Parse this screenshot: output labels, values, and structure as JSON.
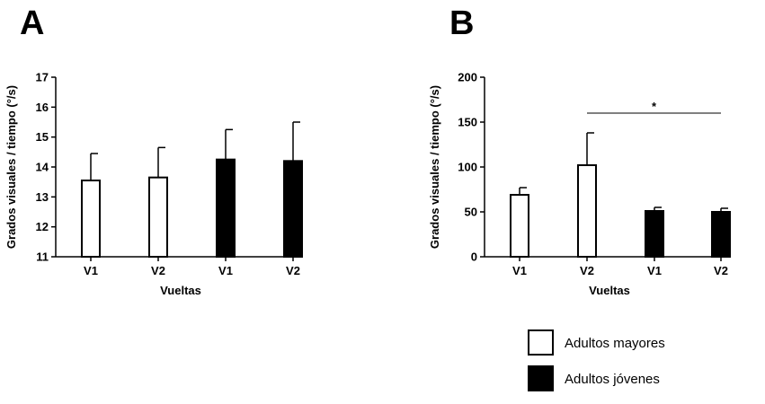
{
  "legend": [
    {
      "label": "Adultos mayores",
      "color": "#ffffff"
    },
    {
      "label": "Adultos jóvenes",
      "color": "#000000"
    }
  ],
  "chart_data": [
    {
      "panel": "A",
      "type": "bar",
      "categories": [
        "V1",
        "V2",
        "V1",
        "V2"
      ],
      "series": [
        {
          "name": "Adultos mayores",
          "values": [
            13.55,
            13.65,
            null,
            null
          ],
          "errors": [
            0.9,
            1.0,
            null,
            null
          ],
          "color": "#ffffff"
        },
        {
          "name": "Adultos jóvenes",
          "values": [
            null,
            null,
            14.25,
            14.2
          ],
          "errors": [
            null,
            null,
            1.0,
            1.3
          ],
          "color": "#000000"
        }
      ],
      "xlabel": "Vueltas",
      "ylabel": "Grados visuales / tiempo (°/s)",
      "ylim": [
        11,
        17
      ],
      "yticks": [
        11,
        12,
        13,
        14,
        15,
        16,
        17
      ],
      "annotations": []
    },
    {
      "panel": "B",
      "type": "bar",
      "categories": [
        "V1",
        "V2",
        "V1",
        "V2"
      ],
      "series": [
        {
          "name": "Adultos mayores",
          "values": [
            69,
            102,
            null,
            null
          ],
          "errors": [
            8,
            36,
            null,
            null
          ],
          "color": "#ffffff"
        },
        {
          "name": "Adultos jóvenes",
          "values": [
            null,
            null,
            51,
            50
          ],
          "errors": [
            null,
            null,
            4,
            4
          ],
          "color": "#000000"
        }
      ],
      "xlabel": "Vueltas",
      "ylabel": "Grados visuales / tiempo (°/s)",
      "ylim": [
        0,
        200
      ],
      "yticks": [
        0,
        50,
        100,
        150,
        200
      ],
      "annotations": [
        {
          "text": "*",
          "from": 1,
          "to": 3,
          "y": 160
        }
      ]
    }
  ]
}
